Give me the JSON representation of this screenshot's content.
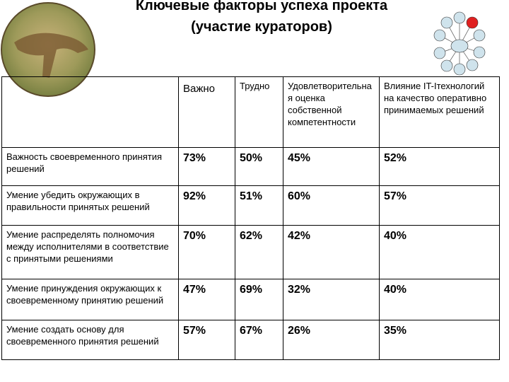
{
  "header": {
    "title_line1": "Ключевые факторы успеха проекта",
    "title_line2": "(участие кураторов)"
  },
  "table": {
    "columns": [
      "Важно",
      "Трудно",
      "Удовлетворительная оценка собственной компетентности",
      "Влияние IT-Iтехнологий на качество оперативно принимаемых решений"
    ],
    "rows": [
      [
        "Важность своевременного принятия решений",
        "73%",
        "50%",
        "45%",
        "52%"
      ],
      [
        "Умение убедить окружающих в правильности принятых решений",
        "92%",
        "51%",
        "60%",
        "57%"
      ],
      [
        "Умение распределять полномочия между исполнителями в соответствие с принятыми решениями",
        "70%",
        "62%",
        "42%",
        "40%"
      ],
      [
        "Умение принуждения окружающих к своевременному принятию решений",
        "47%",
        "69%",
        "32%",
        "40%"
      ],
      [
        "Умение создать основу для своевременного принятия решений",
        "57%",
        "67%",
        "26%",
        "35%"
      ]
    ]
  }
}
